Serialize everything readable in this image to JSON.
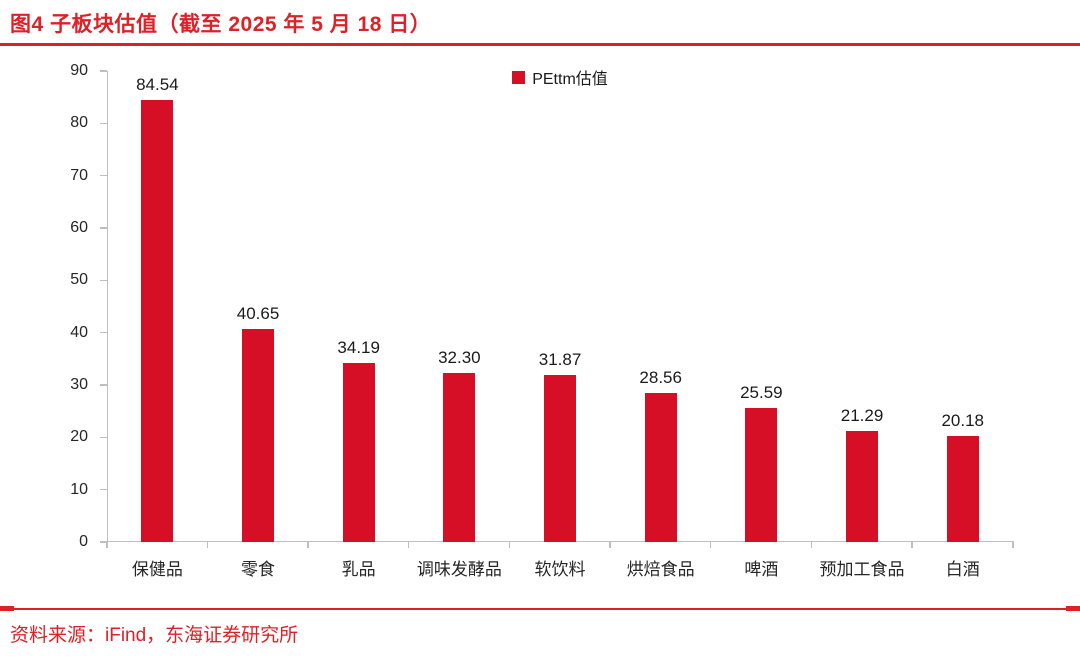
{
  "title": "图4  子板块估值（截至 2025 年 5 月 18 日）",
  "source": "资料来源：iFind，东海证券研究所",
  "colors": {
    "bar": "#d60e26",
    "accent": "#dd2126",
    "axis": "#bfbfbf",
    "text": "#262626"
  },
  "chart_data": {
    "type": "bar",
    "title": "图4 子板块估值（截至 2025 年 5 月 18 日）",
    "legend": "PEttm估值",
    "legend_position": "top-center",
    "categories": [
      "保健品",
      "零食",
      "乳品",
      "调味发酵品",
      "软饮料",
      "烘焙食品",
      "啤酒",
      "预加工食品",
      "白酒"
    ],
    "values": [
      84.54,
      40.65,
      34.19,
      32.3,
      31.87,
      28.56,
      25.59,
      21.29,
      20.18
    ],
    "value_labels": [
      "84.54",
      "40.65",
      "34.19",
      "32.30",
      "31.87",
      "28.56",
      "25.59",
      "21.29",
      "20.18"
    ],
    "xlabel": "",
    "ylabel": "",
    "ylim": [
      0,
      90
    ],
    "ytick_step": 10,
    "grid": false
  }
}
